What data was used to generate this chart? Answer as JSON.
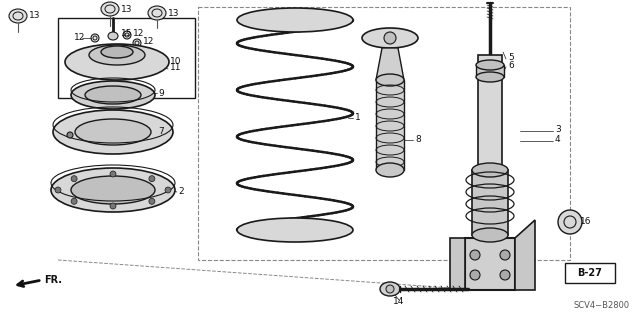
{
  "bg_color": "#ffffff",
  "line_color": "#1a1a1a",
  "label_color": "#111111",
  "figsize": [
    6.4,
    3.19
  ],
  "dpi": 100,
  "ref_code": "SCV4−B2800",
  "page_ref": "B-27",
  "fr_label": "FR."
}
